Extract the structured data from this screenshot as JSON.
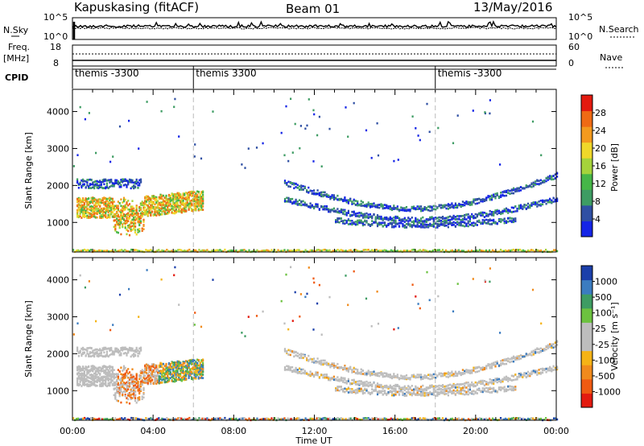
{
  "header": {
    "station": "Kapuskasing (fitACF)",
    "beam": "Beam 01",
    "date": "13/May/2016"
  },
  "top_panels": {
    "nsky_label": "N.Sky",
    "nsky_ticks": [
      "10^5",
      "10^0"
    ],
    "nsearch_label": "N.Search",
    "nsearch_ticks": [
      "10^5",
      "10^0"
    ],
    "freq_label": "Freq.",
    "freq_unit": "[MHz]",
    "freq_ticks": [
      "18",
      "8"
    ],
    "nave_label": "Nave",
    "nave_ticks": [
      "60",
      "0"
    ],
    "cpid_label": "CPID",
    "cpid_segments": [
      {
        "start_h": 0,
        "end_h": 6,
        "label": "themis -3300"
      },
      {
        "start_h": 6,
        "end_h": 18,
        "label": "themis 3300"
      },
      {
        "start_h": 18,
        "end_h": 24,
        "label": "themis -3300"
      }
    ]
  },
  "power_colorbar": {
    "label": "Power [dB]",
    "ticks": [
      "28",
      "24",
      "20",
      "16",
      "12",
      "8",
      "4"
    ],
    "colors": [
      "#1424e6",
      "#2f4fa3",
      "#3e9c63",
      "#46b648",
      "#a5d33b",
      "#f0d82a",
      "#f39a1e",
      "#ef6a14",
      "#e31a0f"
    ]
  },
  "velocity_colorbar": {
    "label": "Velocity [m s⁻¹]",
    "ticks": [
      "1000",
      "500",
      "100",
      "25",
      "-25",
      "-100",
      "-500",
      "-1000"
    ],
    "colors": [
      "#1b3faa",
      "#3b7cc0",
      "#3e9c63",
      "#6cc23f",
      "#bdbdbd",
      "#bdbdbd",
      "#f5b316",
      "#f08a1c",
      "#ef5a12",
      "#e31a0f"
    ]
  },
  "chart_data": [
    {
      "type": "heatmap",
      "panel": "power",
      "ylabel": "Slant Range [km]",
      "yticks": [
        1000,
        2000,
        3000,
        4000
      ],
      "ylim": [
        200,
        4600
      ],
      "xlim": [
        0,
        24
      ],
      "features": [
        {
          "name": "morning band",
          "x_start": 0.2,
          "x_end": 6.5,
          "y_start": 1000,
          "y_end": 1700,
          "value_db": 18
        },
        {
          "name": "morning upper band",
          "x_start": 0.4,
          "x_end": 3.4,
          "y_start": 1900,
          "y_end": 2200,
          "value_db": 8
        },
        {
          "name": "afternoon arc",
          "x_start": 10.5,
          "x_end": 24,
          "y_start": 900,
          "y_end": 2200,
          "value_db": 8
        },
        {
          "name": "ground scatter",
          "x_start": 0,
          "x_end": 24,
          "y_start": 200,
          "y_end": 300,
          "value_db": 16
        }
      ]
    },
    {
      "type": "heatmap",
      "panel": "velocity",
      "ylabel": "Slant Range [km]",
      "xlabel": "Time UT",
      "yticks": [
        1000,
        2000,
        3000,
        4000
      ],
      "ylim": [
        200,
        4600
      ],
      "xlim": [
        0,
        24
      ],
      "xticks": [
        "00:00",
        "04:00",
        "08:00",
        "12:00",
        "16:00",
        "20:00",
        "00:00"
      ],
      "features": [
        {
          "name": "morning grey band",
          "x_start": 0.2,
          "x_end": 3.8,
          "y_start": 1200,
          "y_end": 2000,
          "value_ms": 0
        },
        {
          "name": "dawn orange patch",
          "x_start": 2.2,
          "x_end": 4.2,
          "y_start": 600,
          "y_end": 1300,
          "value_ms": -500
        },
        {
          "name": "dawn mixed patch",
          "x_start": 3.8,
          "x_end": 6.4,
          "y_start": 1000,
          "y_end": 2000,
          "value_ms": 100
        },
        {
          "name": "afternoon grey arc",
          "x_start": 10.5,
          "x_end": 24,
          "y_start": 900,
          "y_end": 2200,
          "value_ms": 0
        },
        {
          "name": "ground scatter",
          "x_start": 0,
          "x_end": 24,
          "y_start": 200,
          "y_end": 300,
          "value_ms": 0
        }
      ]
    }
  ]
}
